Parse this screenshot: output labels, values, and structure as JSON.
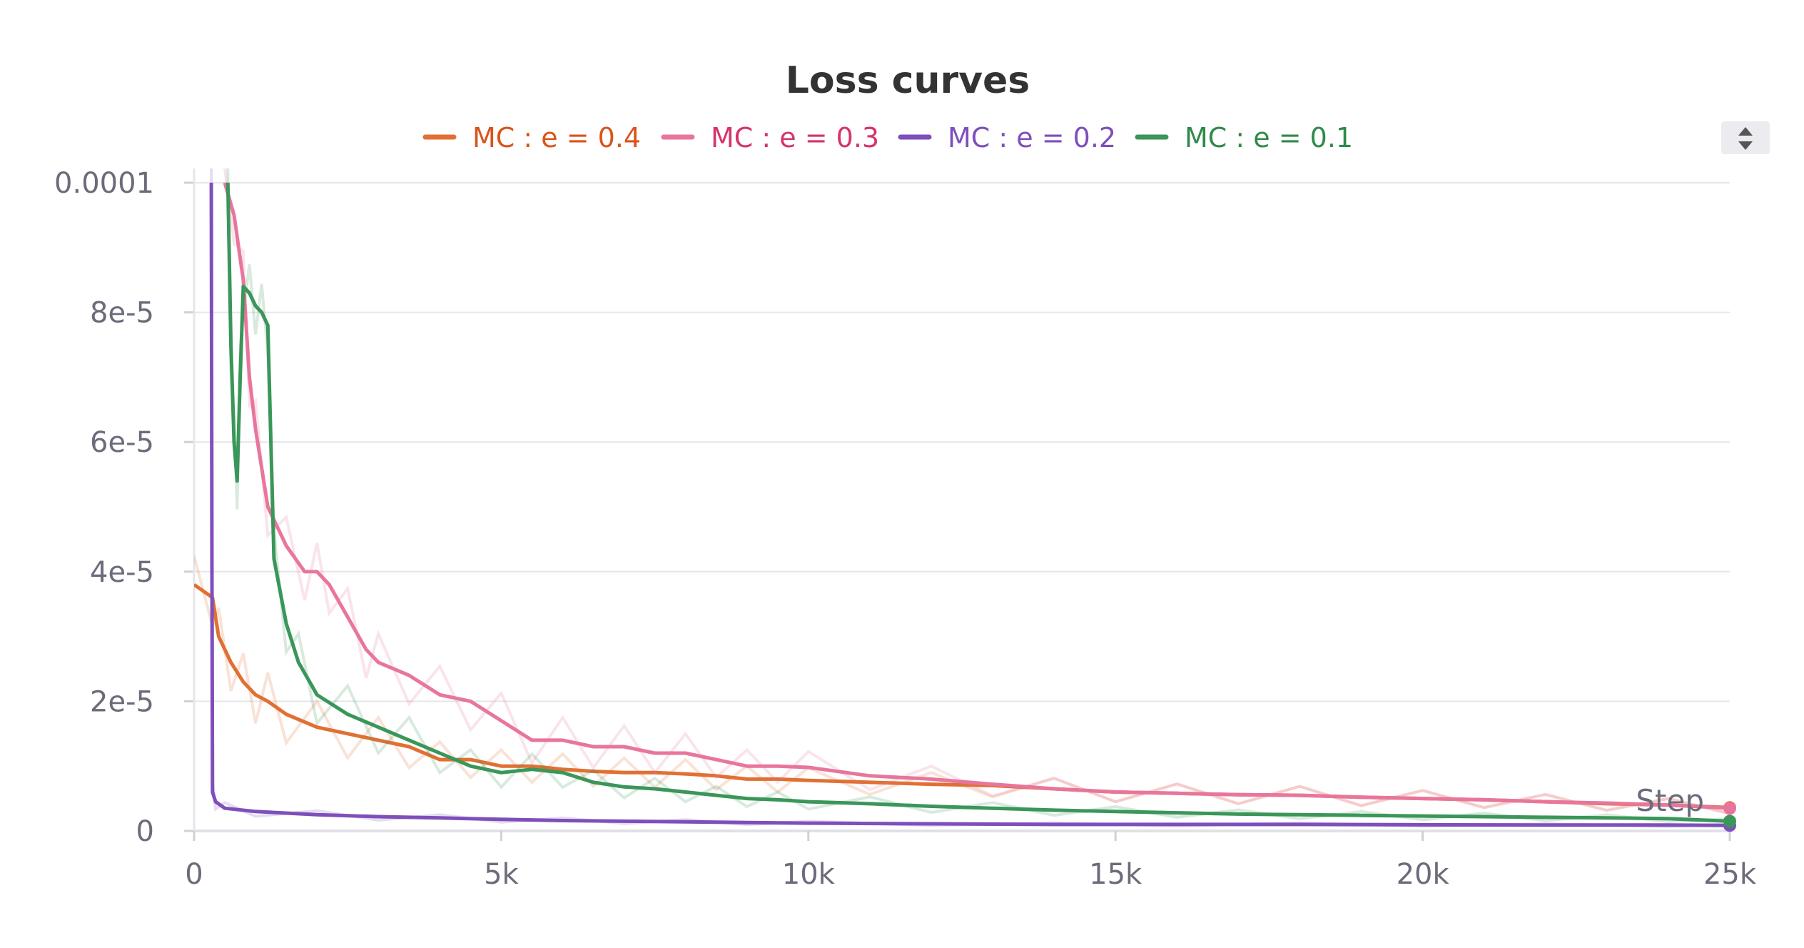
{
  "chart_data": {
    "type": "line",
    "title": "Loss curves",
    "xlabel": "Step",
    "ylabel": "",
    "xlim": [
      0,
      25000
    ],
    "ylim": [
      0,
      0.0001
    ],
    "x_ticks": [
      0,
      5000,
      10000,
      15000,
      20000,
      25000
    ],
    "x_tick_labels": [
      "0",
      "5k",
      "10k",
      "15k",
      "20k",
      "25k"
    ],
    "y_ticks": [
      0,
      2e-05,
      4e-05,
      6e-05,
      8e-05,
      0.0001
    ],
    "y_tick_labels": [
      "0",
      "2e-5",
      "4e-5",
      "6e-5",
      "8e-5",
      "0.0001"
    ],
    "grid": true,
    "legend_position": "top",
    "series": [
      {
        "name": "MC : e = 0.4",
        "color": "#e07033",
        "text_color": "#d9541a",
        "x": [
          0,
          300,
          400,
          600,
          800,
          1000,
          1200,
          1500,
          2000,
          2500,
          3000,
          3500,
          4000,
          4500,
          5000,
          5500,
          6000,
          6500,
          7000,
          7500,
          8000,
          8500,
          9000,
          9500,
          10000,
          11000,
          12000,
          13000,
          14000,
          15000,
          16000,
          17000,
          18000,
          19000,
          20000,
          21000,
          22000,
          23000,
          24000,
          25000
        ],
        "y": [
          3.8e-05,
          3.6e-05,
          3e-05,
          2.6e-05,
          2.3e-05,
          2.1e-05,
          2e-05,
          1.8e-05,
          1.6e-05,
          1.5e-05,
          1.4e-05,
          1.3e-05,
          1.1e-05,
          1.1e-05,
          1e-05,
          1e-05,
          9.5e-06,
          9.2e-06,
          9e-06,
          9e-06,
          8.8e-06,
          8.5e-06,
          8e-06,
          8e-06,
          7.8e-06,
          7.5e-06,
          7.2e-06,
          7e-06,
          6.5e-06,
          6e-06,
          5.8e-06,
          5.6e-06,
          5.5e-06,
          5.2e-06,
          5e-06,
          4.8e-06,
          4.5e-06,
          4.2e-06,
          4e-06,
          3.6e-06
        ]
      },
      {
        "name": "MC : e = 0.3",
        "color": "#e8769c",
        "text_color": "#d6336c",
        "x": [
          500,
          650,
          800,
          900,
          1000,
          1200,
          1500,
          1800,
          2000,
          2200,
          2500,
          2800,
          3000,
          3500,
          4000,
          4500,
          5000,
          5500,
          6000,
          6500,
          7000,
          7500,
          8000,
          8500,
          9000,
          9500,
          10000,
          11000,
          12000,
          13000,
          14000,
          15000,
          16000,
          17000,
          18000,
          19000,
          20000,
          21000,
          22000,
          23000,
          24000,
          25000
        ],
        "y": [
          0.0001,
          9.5e-05,
          8.5e-05,
          7e-05,
          6.2e-05,
          5e-05,
          4.4e-05,
          4e-05,
          4e-05,
          3.8e-05,
          3.3e-05,
          2.8e-05,
          2.6e-05,
          2.4e-05,
          2.1e-05,
          2e-05,
          1.7e-05,
          1.4e-05,
          1.4e-05,
          1.3e-05,
          1.3e-05,
          1.2e-05,
          1.2e-05,
          1.1e-05,
          1e-05,
          1e-05,
          9.8e-06,
          8.5e-06,
          8e-06,
          7.2e-06,
          6.5e-06,
          6e-06,
          5.8e-06,
          5.6e-06,
          5.5e-06,
          5.2e-06,
          5e-06,
          4.8e-06,
          4.5e-06,
          4.3e-06,
          4e-06,
          3.5e-06
        ]
      },
      {
        "name": "MC : e = 0.2",
        "color": "#7e4fbb",
        "text_color": "#7e4fbb",
        "x": [
          280,
          290,
          300,
          350,
          500,
          1000,
          2000,
          3000,
          4000,
          5000,
          6000,
          7000,
          8000,
          9000,
          10000,
          12000,
          14000,
          16000,
          18000,
          20000,
          22000,
          24000,
          25000
        ],
        "y": [
          0.0001,
          4e-05,
          6e-06,
          4.5e-06,
          3.5e-06,
          3e-06,
          2.5e-06,
          2.2e-06,
          2e-06,
          1.8e-06,
          1.6e-06,
          1.5e-06,
          1.4e-06,
          1.3e-06,
          1.2e-06,
          1.1e-06,
          1e-06,
          1e-06,
          1e-06,
          9.5e-07,
          9e-07,
          9e-07,
          8.5e-07
        ]
      },
      {
        "name": "MC : e = 0.1",
        "color": "#3a9659",
        "text_color": "#2f8a4b",
        "x": [
          550,
          600,
          650,
          700,
          750,
          800,
          900,
          1000,
          1100,
          1200,
          1300,
          1500,
          1700,
          2000,
          2500,
          3000,
          3500,
          4000,
          4500,
          5000,
          5500,
          6000,
          6500,
          7000,
          7500,
          8000,
          8500,
          9000,
          9500,
          10000,
          11000,
          12000,
          13000,
          14000,
          15000,
          16000,
          17000,
          18000,
          19000,
          20000,
          21000,
          22000,
          23000,
          24000,
          25000
        ],
        "y": [
          0.0001,
          7.5e-05,
          6e-05,
          5.4e-05,
          7e-05,
          8.4e-05,
          8.3e-05,
          8.1e-05,
          8e-05,
          7.8e-05,
          4.2e-05,
          3.2e-05,
          2.6e-05,
          2.1e-05,
          1.8e-05,
          1.6e-05,
          1.4e-05,
          1.2e-05,
          1e-05,
          9e-06,
          9.5e-06,
          9e-06,
          7.5e-06,
          6.8e-06,
          6.5e-06,
          6e-06,
          5.5e-06,
          5e-06,
          4.8e-06,
          4.5e-06,
          4.2e-06,
          3.8e-06,
          3.5e-06,
          3.2e-06,
          3e-06,
          2.8e-06,
          2.6e-06,
          2.5e-06,
          2.4e-06,
          2.3e-06,
          2.2e-06,
          2.1e-06,
          2e-06,
          1.9e-06,
          1.5e-06
        ]
      }
    ]
  }
}
